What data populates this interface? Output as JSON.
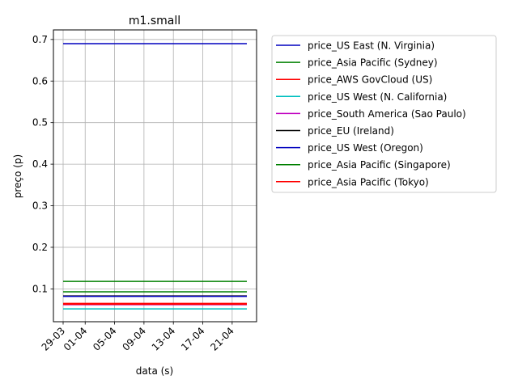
{
  "chart_data": {
    "type": "line",
    "title": "m1.small",
    "xlabel": "data (s)",
    "ylabel": "preço (p)",
    "x_ticks": [
      "29-03",
      "01-04",
      "05-04",
      "09-04",
      "13-04",
      "17-04",
      "21-04"
    ],
    "x_range": [
      "2016-03-29",
      "2016-04-23"
    ],
    "ylim": [
      0.021,
      0.723
    ],
    "y_ticks": [
      0.1,
      0.2,
      0.3,
      0.4,
      0.5,
      0.6,
      0.7
    ],
    "grid": true,
    "legend_position": "outside-right",
    "series": [
      {
        "name": "price_US East (N. Virginia)",
        "color": "#0000bf",
        "x": [
          "2016-03-29",
          "2016-04-23"
        ],
        "values": [
          0.69,
          0.69
        ]
      },
      {
        "name": "price_Asia Pacific (Sydney)",
        "color": "#008000",
        "x": [
          "2016-03-29",
          "2016-04-23"
        ],
        "values": [
          0.118,
          0.118
        ]
      },
      {
        "name": "price_AWS GovCloud (US)",
        "color": "#ff0000",
        "x": [
          "2016-03-29",
          "2016-04-23"
        ],
        "values": [
          0.065,
          0.065
        ]
      },
      {
        "name": "price_US West (N. California)",
        "color": "#00bfbf",
        "x": [
          "2016-03-29",
          "2016-04-23"
        ],
        "values": [
          0.052,
          0.052
        ]
      },
      {
        "name": "price_South America (Sao Paulo)",
        "color": "#bf00bf",
        "x": [
          "2016-03-29",
          "2016-04-23"
        ],
        "values": [
          0.062,
          0.062
        ]
      },
      {
        "name": "price_EU (Ireland)",
        "color": "#000000",
        "x": [
          "2016-03-29",
          "2016-04-23"
        ],
        "values": [
          0.083,
          0.083
        ]
      },
      {
        "name": "price_US West (Oregon)",
        "color": "#0000bf",
        "x": [
          "2016-03-29",
          "2016-04-23"
        ],
        "values": [
          0.082,
          0.082
        ]
      },
      {
        "name": "price_Asia Pacific (Singapore)",
        "color": "#008000",
        "x": [
          "2016-03-29",
          "2016-04-23"
        ],
        "values": [
          0.093,
          0.093
        ]
      },
      {
        "name": "price_Asia Pacific (Tokyo)",
        "color": "#ff0000",
        "x": [
          "2016-03-29",
          "2016-04-23"
        ],
        "values": [
          0.063,
          0.063
        ]
      }
    ]
  }
}
